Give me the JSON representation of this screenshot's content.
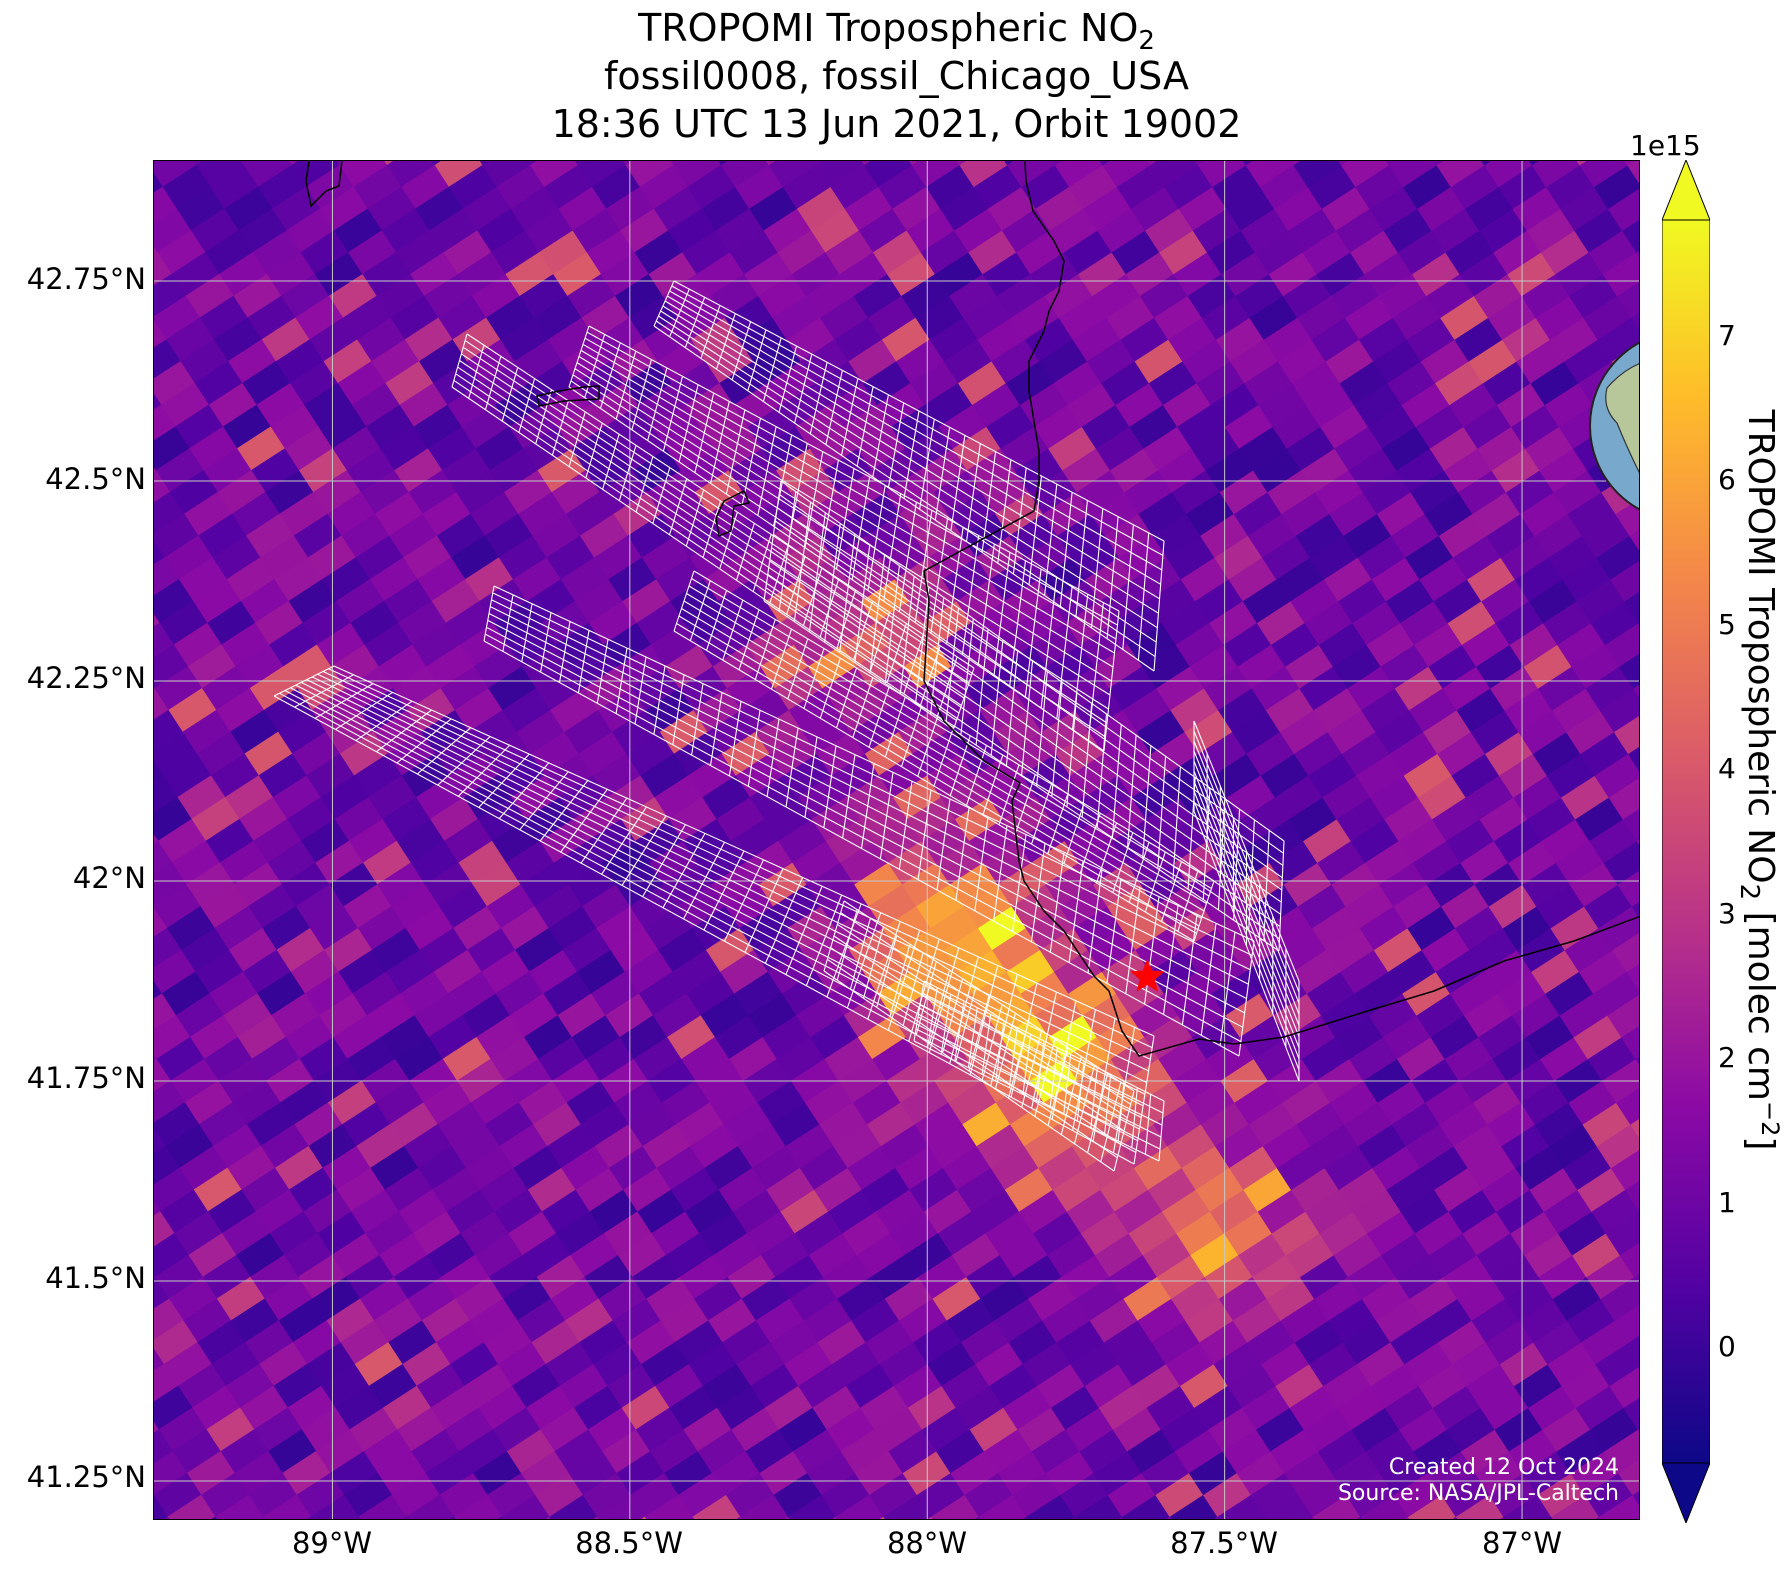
{
  "title": {
    "line1_prefix": "TROPOMI Tropospheric NO",
    "line1_sub": "2",
    "line2": "fossil0008, fossil_Chicago_USA",
    "line3": "18:36 UTC 13 Jun 2021, Orbit 19002"
  },
  "map": {
    "lat_ticks": [
      "42.75°N",
      "42.5°N",
      "42.25°N",
      "42°N",
      "41.75°N",
      "41.5°N",
      "41.25°N"
    ],
    "lon_ticks": [
      "89°W",
      "88.5°W",
      "88°W",
      "87.5°W",
      "87°W"
    ],
    "lon_range": [
      -89.3,
      -86.8
    ],
    "lat_range": [
      41.2,
      42.9
    ],
    "target_marker": {
      "lon": -87.63,
      "lat": 41.88,
      "color": "#ff0000"
    },
    "credits": {
      "created": "Created 12 Oct 2024",
      "source": "Source: NASA/JPL-Caltech"
    }
  },
  "colorbar": {
    "colormap": "plasma",
    "colors": [
      "#0d0887",
      "#5302a3",
      "#8b0aa5",
      "#b83289",
      "#db5c68",
      "#f48849",
      "#febc2a",
      "#f0f921"
    ],
    "ticks": [
      "0",
      "1",
      "2",
      "3",
      "4",
      "5",
      "6",
      "7"
    ],
    "exponent": "1e15",
    "label_prefix": "TROPOMI Tropospheric NO",
    "label_sub": "2",
    "label_mid": " [molec cm",
    "label_sup": "−2",
    "label_suffix": "]",
    "vmin": -0.8,
    "vmax": 7.8
  },
  "inset_globe": {
    "marker_color": "#ff0000"
  }
}
